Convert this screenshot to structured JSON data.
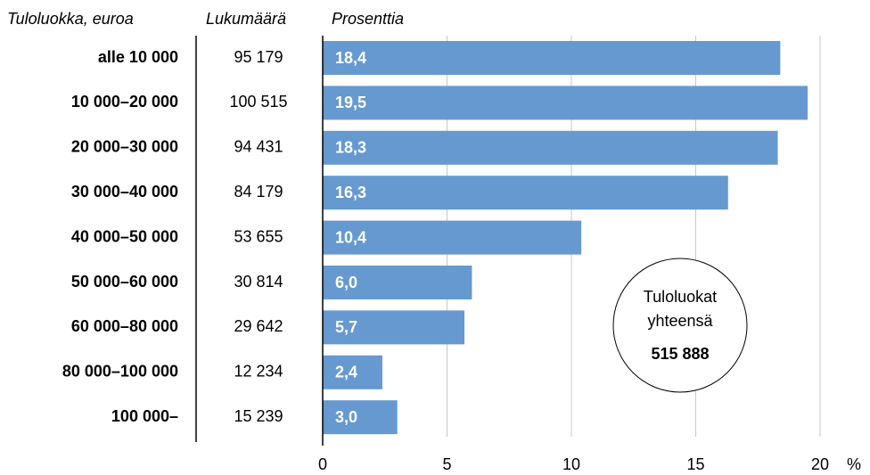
{
  "chart_data": {
    "type": "bar",
    "orientation": "horizontal",
    "column_headers": [
      "Tuloluokka, euroa",
      "Lukumäärä",
      "Prosenttia"
    ],
    "categories": [
      "alle 10 000",
      "10 000–20 000",
      "20 000–30 000",
      "30 000–40 000",
      "40 000–50 000",
      "50 000–60 000",
      "60 000–80 000",
      "80 000–100 000",
      "100 000–"
    ],
    "counts": [
      "95 179",
      "100 515",
      "94 431",
      "84 179",
      "53 655",
      "30 814",
      "29 642",
      "12 234",
      "15 239"
    ],
    "values": [
      18.4,
      19.5,
      18.3,
      16.3,
      10.4,
      6.0,
      5.7,
      2.4,
      3.0
    ],
    "value_labels": [
      "18,4",
      "19,5",
      "18,3",
      "16,3",
      "10,4",
      "6,0",
      "5,7",
      "2,4",
      "3,0"
    ],
    "color": "#6699d0",
    "xlim": [
      0,
      20
    ],
    "xticks": [
      0,
      5,
      10,
      15,
      20
    ],
    "xlabel": "%",
    "grid": true,
    "annotation": {
      "lines": [
        "Tuloluokat",
        "yhteensä"
      ],
      "total": "515 888"
    }
  }
}
